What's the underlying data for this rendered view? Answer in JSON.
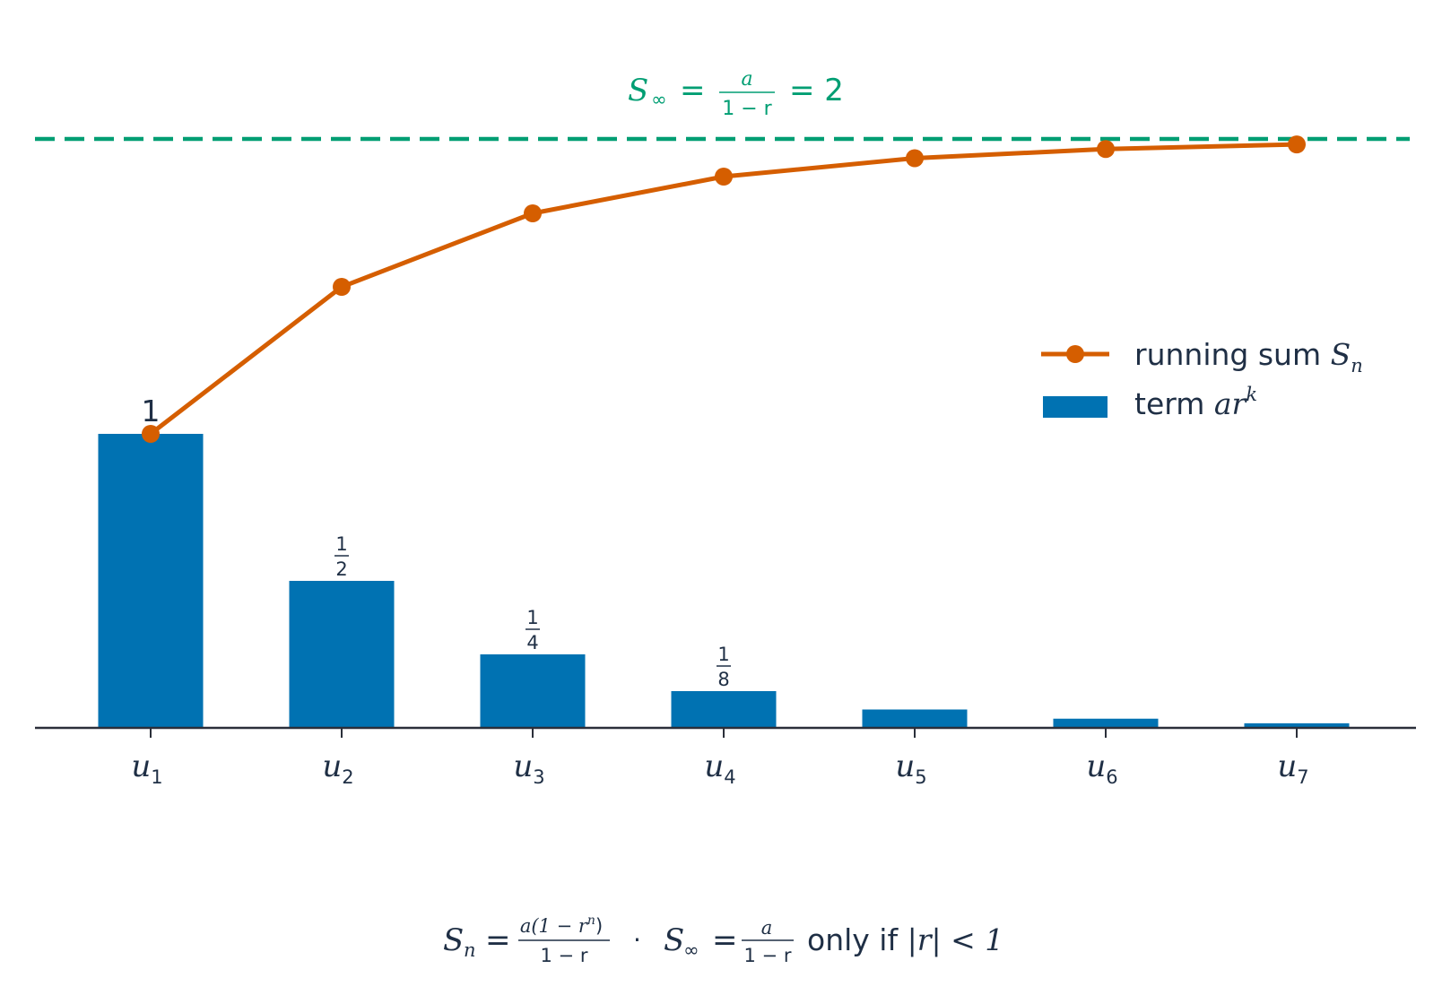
{
  "chart_data": {
    "type": "bar",
    "categories": [
      {
        "base": "u",
        "sub": "1"
      },
      {
        "base": "u",
        "sub": "2"
      },
      {
        "base": "u",
        "sub": "3"
      },
      {
        "base": "u",
        "sub": "4"
      },
      {
        "base": "u",
        "sub": "5"
      },
      {
        "base": "u",
        "sub": "6"
      },
      {
        "base": "u",
        "sub": "7"
      }
    ],
    "series": [
      {
        "name": "term ar^k",
        "kind": "bar",
        "values": [
          1,
          0.5,
          0.25,
          0.125,
          0.0625,
          0.03125,
          0.015625
        ],
        "color": "#0072b2"
      },
      {
        "name": "running sum S_n",
        "kind": "line",
        "values": [
          1,
          1.5,
          1.75,
          1.875,
          1.9375,
          1.96875,
          1.984375
        ],
        "color": "#d55e00",
        "marker": "circle"
      }
    ],
    "bar_labels": [
      {
        "index": 0,
        "whole": "1"
      },
      {
        "index": 1,
        "num": "1",
        "den": "2"
      },
      {
        "index": 2,
        "num": "1",
        "den": "4"
      },
      {
        "index": 3,
        "num": "1",
        "den": "8"
      }
    ],
    "limit_line": {
      "value": 2,
      "style": "dashed",
      "color": "#009e73",
      "label": {
        "lhs": "S",
        "lhs_sub": "∞",
        "num": "a",
        "den": "1 − r",
        "rhs": "= 2"
      }
    },
    "legend": {
      "placement": "center-right",
      "items": [
        {
          "text": "running sum ",
          "math": "S",
          "math_sub": "n",
          "kind": "line"
        },
        {
          "text": "term ",
          "math": "ar",
          "math_sup": "k",
          "kind": "bar"
        }
      ]
    },
    "footer": {
      "sn_lhs": "S",
      "sn_sub": "n",
      "sn_num": "a(1 − r",
      "sn_num_sup": "n",
      "sn_num_end": ")",
      "sn_den": "1 − r",
      "dot": "·",
      "sinf_lhs": "S",
      "sinf_sub": "∞",
      "sinf_num": "a",
      "sinf_den": "1 − r",
      "tail_text": "only if ",
      "tail_math": "|r| < 1"
    },
    "ylim": [
      0,
      2.05
    ],
    "grid": false,
    "text_color": "#1f2f45",
    "axis_color": "#2b2f3a"
  }
}
